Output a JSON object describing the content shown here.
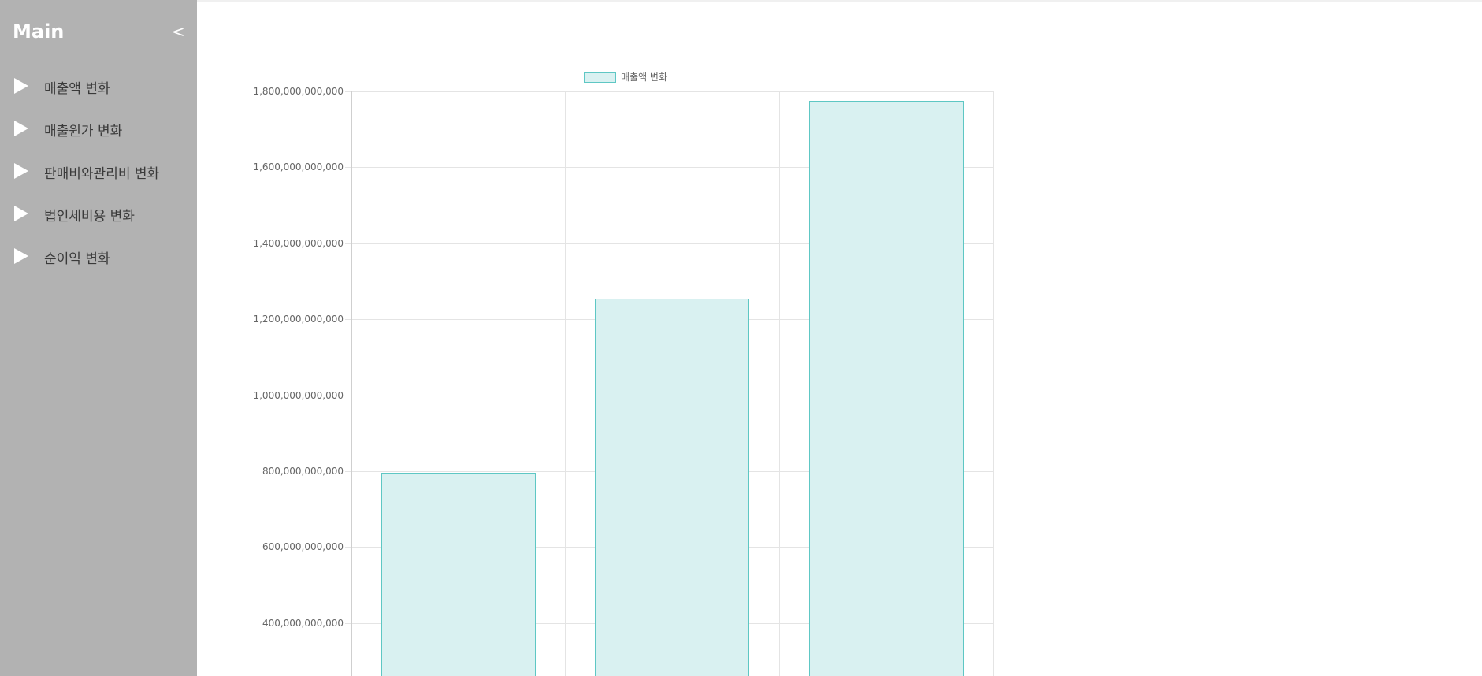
{
  "sidebar": {
    "title": "Main",
    "toggle": "<",
    "items": [
      {
        "label": "매출액 변화"
      },
      {
        "label": "매출원가 변화"
      },
      {
        "label": "판매비와관리비 변화"
      },
      {
        "label": "법인세비용 변화"
      },
      {
        "label": "순이익 변화"
      }
    ]
  },
  "colors": {
    "sidebar_bg": "#b2b2b2",
    "bar_fill": "#d9f1f1",
    "bar_border": "#5ec7c4",
    "grid": "#e4e4e4"
  },
  "chart_data": {
    "type": "bar",
    "legend_position": "top",
    "grid": true,
    "series": [
      {
        "name": "매출액 변화",
        "values": [
          795000000000,
          1255000000000,
          1775000000000
        ]
      }
    ],
    "yticks": [
      "1,800,000,000,000",
      "1,600,000,000,000",
      "1,400,000,000,000",
      "1,200,000,000,000",
      "1,000,000,000,000",
      "800,000,000,000",
      "600,000,000,000",
      "400,000,000,000"
    ],
    "ylim": [
      0,
      1800000000000
    ]
  }
}
